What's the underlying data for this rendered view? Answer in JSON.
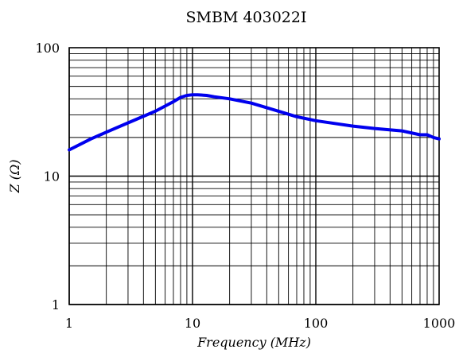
{
  "chart_data": {
    "type": "line",
    "title": "SMBM 403022I",
    "xlabel": "Frequency (MHz)",
    "ylabel": "Z (Ω)",
    "x_scale": "log",
    "y_scale": "log",
    "xlim": [
      1,
      1000
    ],
    "ylim": [
      1,
      100
    ],
    "grid": true,
    "x_ticks": [
      1,
      10,
      100,
      1000
    ],
    "x_tick_labels": [
      "1",
      "10",
      "100",
      "1000"
    ],
    "y_ticks": [
      1,
      10,
      100
    ],
    "y_tick_labels": [
      "1",
      "10",
      "100"
    ],
    "colors": {
      "series": "#0000ee",
      "grid": "#000000"
    },
    "series": [
      {
        "x": [
          1,
          1.5,
          2,
          3,
          5,
          7,
          8,
          9,
          10,
          11,
          13,
          15,
          20,
          30,
          50,
          70,
          100,
          150,
          200,
          300,
          500,
          700,
          800,
          900,
          1000
        ],
        "y": [
          16,
          19.5,
          22,
          26,
          32,
          38,
          41,
          42.5,
          43,
          43,
          42.5,
          41.5,
          40,
          37,
          32,
          29,
          27,
          25.5,
          24.5,
          23.5,
          22.5,
          21,
          21,
          20,
          19.5
        ]
      }
    ]
  }
}
